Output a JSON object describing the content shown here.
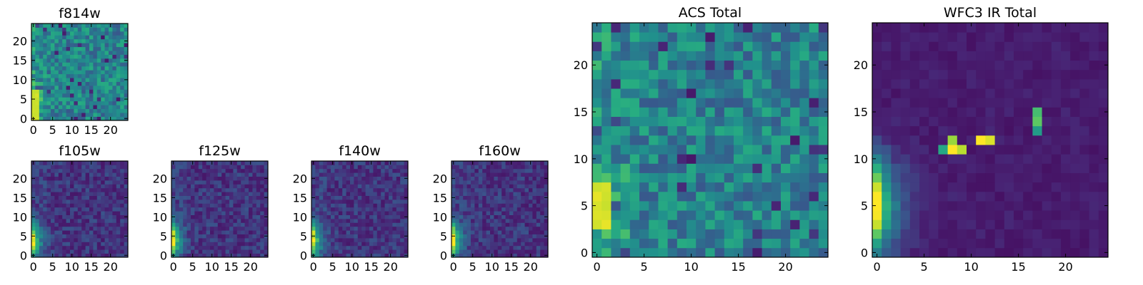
{
  "chart_data": [
    {
      "type": "heatmap",
      "title": "f814w",
      "kind": "acs",
      "size": 25,
      "xticks": [
        0,
        5,
        10,
        15,
        20
      ],
      "yticks": [
        0,
        5,
        10,
        15,
        20
      ],
      "xlim": [
        0,
        24
      ],
      "ylim": [
        0,
        24
      ],
      "colormap": "viridis",
      "seed": 11,
      "edge_blob": {
        "rows": [
          0,
          7
        ],
        "cols": [
          0,
          1
        ],
        "value": 0.95
      }
    },
    {
      "type": "heatmap",
      "title": "f105w",
      "kind": "ir",
      "size": 25,
      "xticks": [
        0,
        5,
        10,
        15,
        20
      ],
      "yticks": [
        0,
        5,
        10,
        15,
        20
      ],
      "xlim": [
        0,
        24
      ],
      "ylim": [
        0,
        24
      ],
      "colormap": "viridis",
      "seed": 23
    },
    {
      "type": "heatmap",
      "title": "f125w",
      "kind": "ir",
      "size": 25,
      "xticks": [
        0,
        5,
        10,
        15,
        20
      ],
      "yticks": [
        0,
        5,
        10,
        15,
        20
      ],
      "xlim": [
        0,
        24
      ],
      "ylim": [
        0,
        24
      ],
      "colormap": "viridis",
      "seed": 37
    },
    {
      "type": "heatmap",
      "title": "f140w",
      "kind": "ir",
      "size": 25,
      "xticks": [
        0,
        5,
        10,
        15,
        20
      ],
      "yticks": [
        0,
        5,
        10,
        15,
        20
      ],
      "xlim": [
        0,
        24
      ],
      "ylim": [
        0,
        24
      ],
      "colormap": "viridis",
      "seed": 41
    },
    {
      "type": "heatmap",
      "title": "f160w",
      "kind": "ir",
      "size": 25,
      "xticks": [
        0,
        5,
        10,
        15,
        20
      ],
      "yticks": [
        0,
        5,
        10,
        15,
        20
      ],
      "xlim": [
        0,
        24
      ],
      "ylim": [
        0,
        24
      ],
      "colormap": "viridis",
      "seed": 53
    },
    {
      "type": "heatmap",
      "title": "ACS Total",
      "kind": "acs",
      "size": 25,
      "xticks": [
        0,
        5,
        10,
        15,
        20
      ],
      "yticks": [
        0,
        5,
        10,
        15,
        20
      ],
      "xlim": [
        0,
        24
      ],
      "ylim": [
        0,
        24
      ],
      "colormap": "viridis",
      "seed": 67,
      "edge_blob": {
        "rows": [
          3,
          7
        ],
        "cols": [
          0,
          1
        ],
        "value": 0.97
      }
    },
    {
      "type": "heatmap",
      "title": "WFC3 IR Total",
      "kind": "ir_total",
      "size": 25,
      "xticks": [
        0,
        5,
        10,
        15,
        20
      ],
      "yticks": [
        0,
        5,
        10,
        15,
        20
      ],
      "xlim": [
        0,
        24
      ],
      "ylim": [
        0,
        24
      ],
      "colormap": "viridis",
      "seed": 79,
      "hot_pixels": [
        {
          "row": 11,
          "col": 8,
          "value": 1.0
        },
        {
          "row": 12,
          "col": 8,
          "value": 0.85
        },
        {
          "row": 11,
          "col": 9,
          "value": 0.9
        },
        {
          "row": 12,
          "col": 11,
          "value": 1.0
        },
        {
          "row": 12,
          "col": 12,
          "value": 0.95
        },
        {
          "row": 11,
          "col": 7,
          "value": 0.6
        },
        {
          "row": 14,
          "col": 17,
          "value": 0.75
        },
        {
          "row": 15,
          "col": 17,
          "value": 0.7
        },
        {
          "row": 13,
          "col": 17,
          "value": 0.55
        }
      ]
    }
  ]
}
